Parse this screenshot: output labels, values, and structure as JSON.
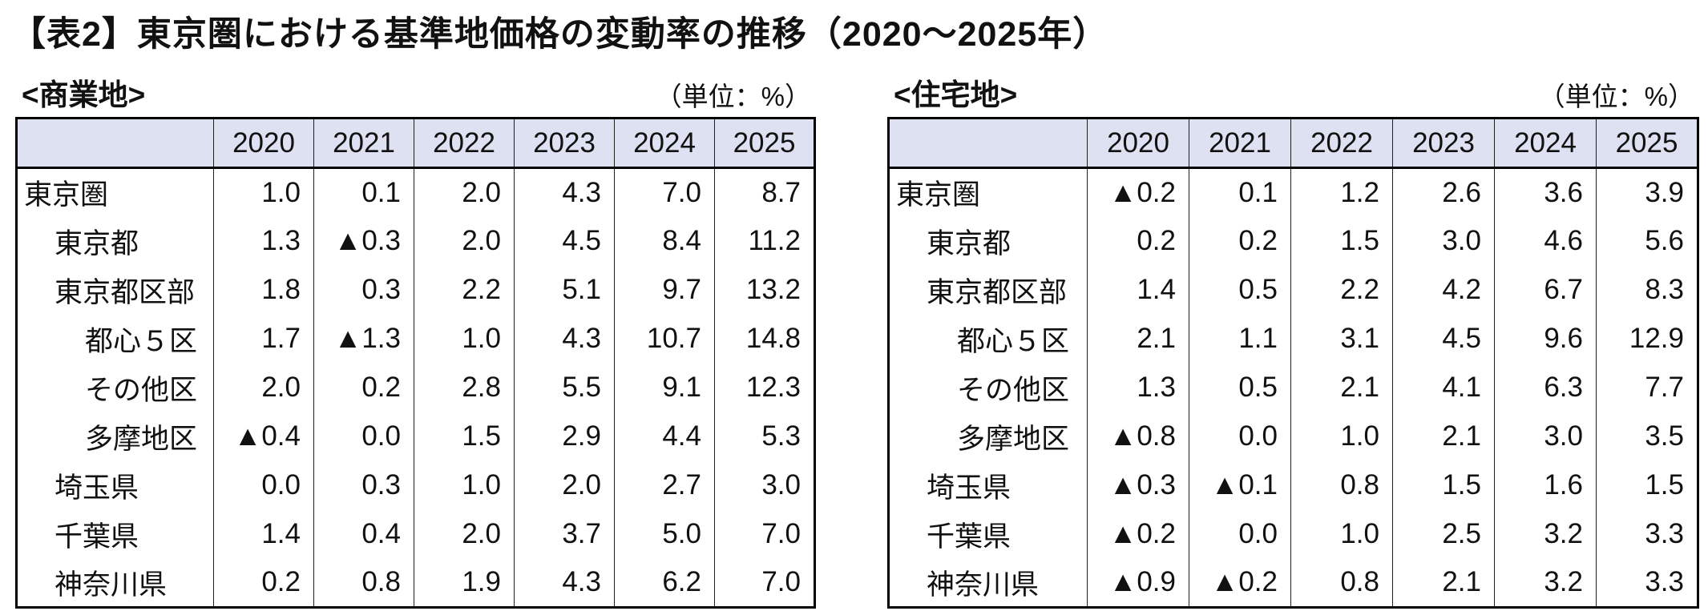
{
  "title": "【表2】東京圏における基準地価格の変動率の推移（2020～2025年）",
  "colors": {
    "header_bg": "#dde1f2",
    "border": "#000000"
  },
  "tables": [
    {
      "id": "commercial",
      "section_label": "<商業地>",
      "unit_label": "（単位：%）",
      "years": [
        "2020",
        "2021",
        "2022",
        "2023",
        "2024",
        "2025"
      ],
      "rows": [
        {
          "label": "東京圏",
          "indent": 0,
          "values": [
            "1.0",
            "0.1",
            "2.0",
            "4.3",
            "7.0",
            "8.7"
          ]
        },
        {
          "label": "東京都",
          "indent": 1,
          "values": [
            "1.3",
            "▲0.3",
            "2.0",
            "4.5",
            "8.4",
            "11.2"
          ]
        },
        {
          "label": "東京都区部",
          "indent": 1,
          "values": [
            "1.8",
            "0.3",
            "2.2",
            "5.1",
            "9.7",
            "13.2"
          ]
        },
        {
          "label": "都心５区",
          "indent": 2,
          "values": [
            "1.7",
            "▲1.3",
            "1.0",
            "4.3",
            "10.7",
            "14.8"
          ]
        },
        {
          "label": "その他区",
          "indent": 2,
          "values": [
            "2.0",
            "0.2",
            "2.8",
            "5.5",
            "9.1",
            "12.3"
          ]
        },
        {
          "label": "多摩地区",
          "indent": 2,
          "values": [
            "▲0.4",
            "0.0",
            "1.5",
            "2.9",
            "4.4",
            "5.3"
          ]
        },
        {
          "label": "埼玉県",
          "indent": 1,
          "values": [
            "0.0",
            "0.3",
            "1.0",
            "2.0",
            "2.7",
            "3.0"
          ]
        },
        {
          "label": "千葉県",
          "indent": 1,
          "values": [
            "1.4",
            "0.4",
            "2.0",
            "3.7",
            "5.0",
            "7.0"
          ]
        },
        {
          "label": "神奈川県",
          "indent": 1,
          "values": [
            "0.2",
            "0.8",
            "1.9",
            "4.3",
            "6.2",
            "7.0"
          ]
        }
      ]
    },
    {
      "id": "residential",
      "section_label": "<住宅地>",
      "unit_label": "（単位：%）",
      "years": [
        "2020",
        "2021",
        "2022",
        "2023",
        "2024",
        "2025"
      ],
      "rows": [
        {
          "label": "東京圏",
          "indent": 0,
          "values": [
            "▲0.2",
            "0.1",
            "1.2",
            "2.6",
            "3.6",
            "3.9"
          ]
        },
        {
          "label": "東京都",
          "indent": 1,
          "values": [
            "0.2",
            "0.2",
            "1.5",
            "3.0",
            "4.6",
            "5.6"
          ]
        },
        {
          "label": "東京都区部",
          "indent": 1,
          "values": [
            "1.4",
            "0.5",
            "2.2",
            "4.2",
            "6.7",
            "8.3"
          ]
        },
        {
          "label": "都心５区",
          "indent": 2,
          "values": [
            "2.1",
            "1.1",
            "3.1",
            "4.5",
            "9.6",
            "12.9"
          ]
        },
        {
          "label": "その他区",
          "indent": 2,
          "values": [
            "1.3",
            "0.5",
            "2.1",
            "4.1",
            "6.3",
            "7.7"
          ]
        },
        {
          "label": "多摩地区",
          "indent": 2,
          "values": [
            "▲0.8",
            "0.0",
            "1.0",
            "2.1",
            "3.0",
            "3.5"
          ]
        },
        {
          "label": "埼玉県",
          "indent": 1,
          "values": [
            "▲0.3",
            "▲0.1",
            "0.8",
            "1.5",
            "1.6",
            "1.5"
          ]
        },
        {
          "label": "千葉県",
          "indent": 1,
          "values": [
            "▲0.2",
            "0.0",
            "1.0",
            "2.5",
            "3.2",
            "3.3"
          ]
        },
        {
          "label": "神奈川県",
          "indent": 1,
          "values": [
            "▲0.9",
            "▲0.2",
            "0.8",
            "2.1",
            "3.2",
            "3.3"
          ]
        }
      ]
    }
  ]
}
